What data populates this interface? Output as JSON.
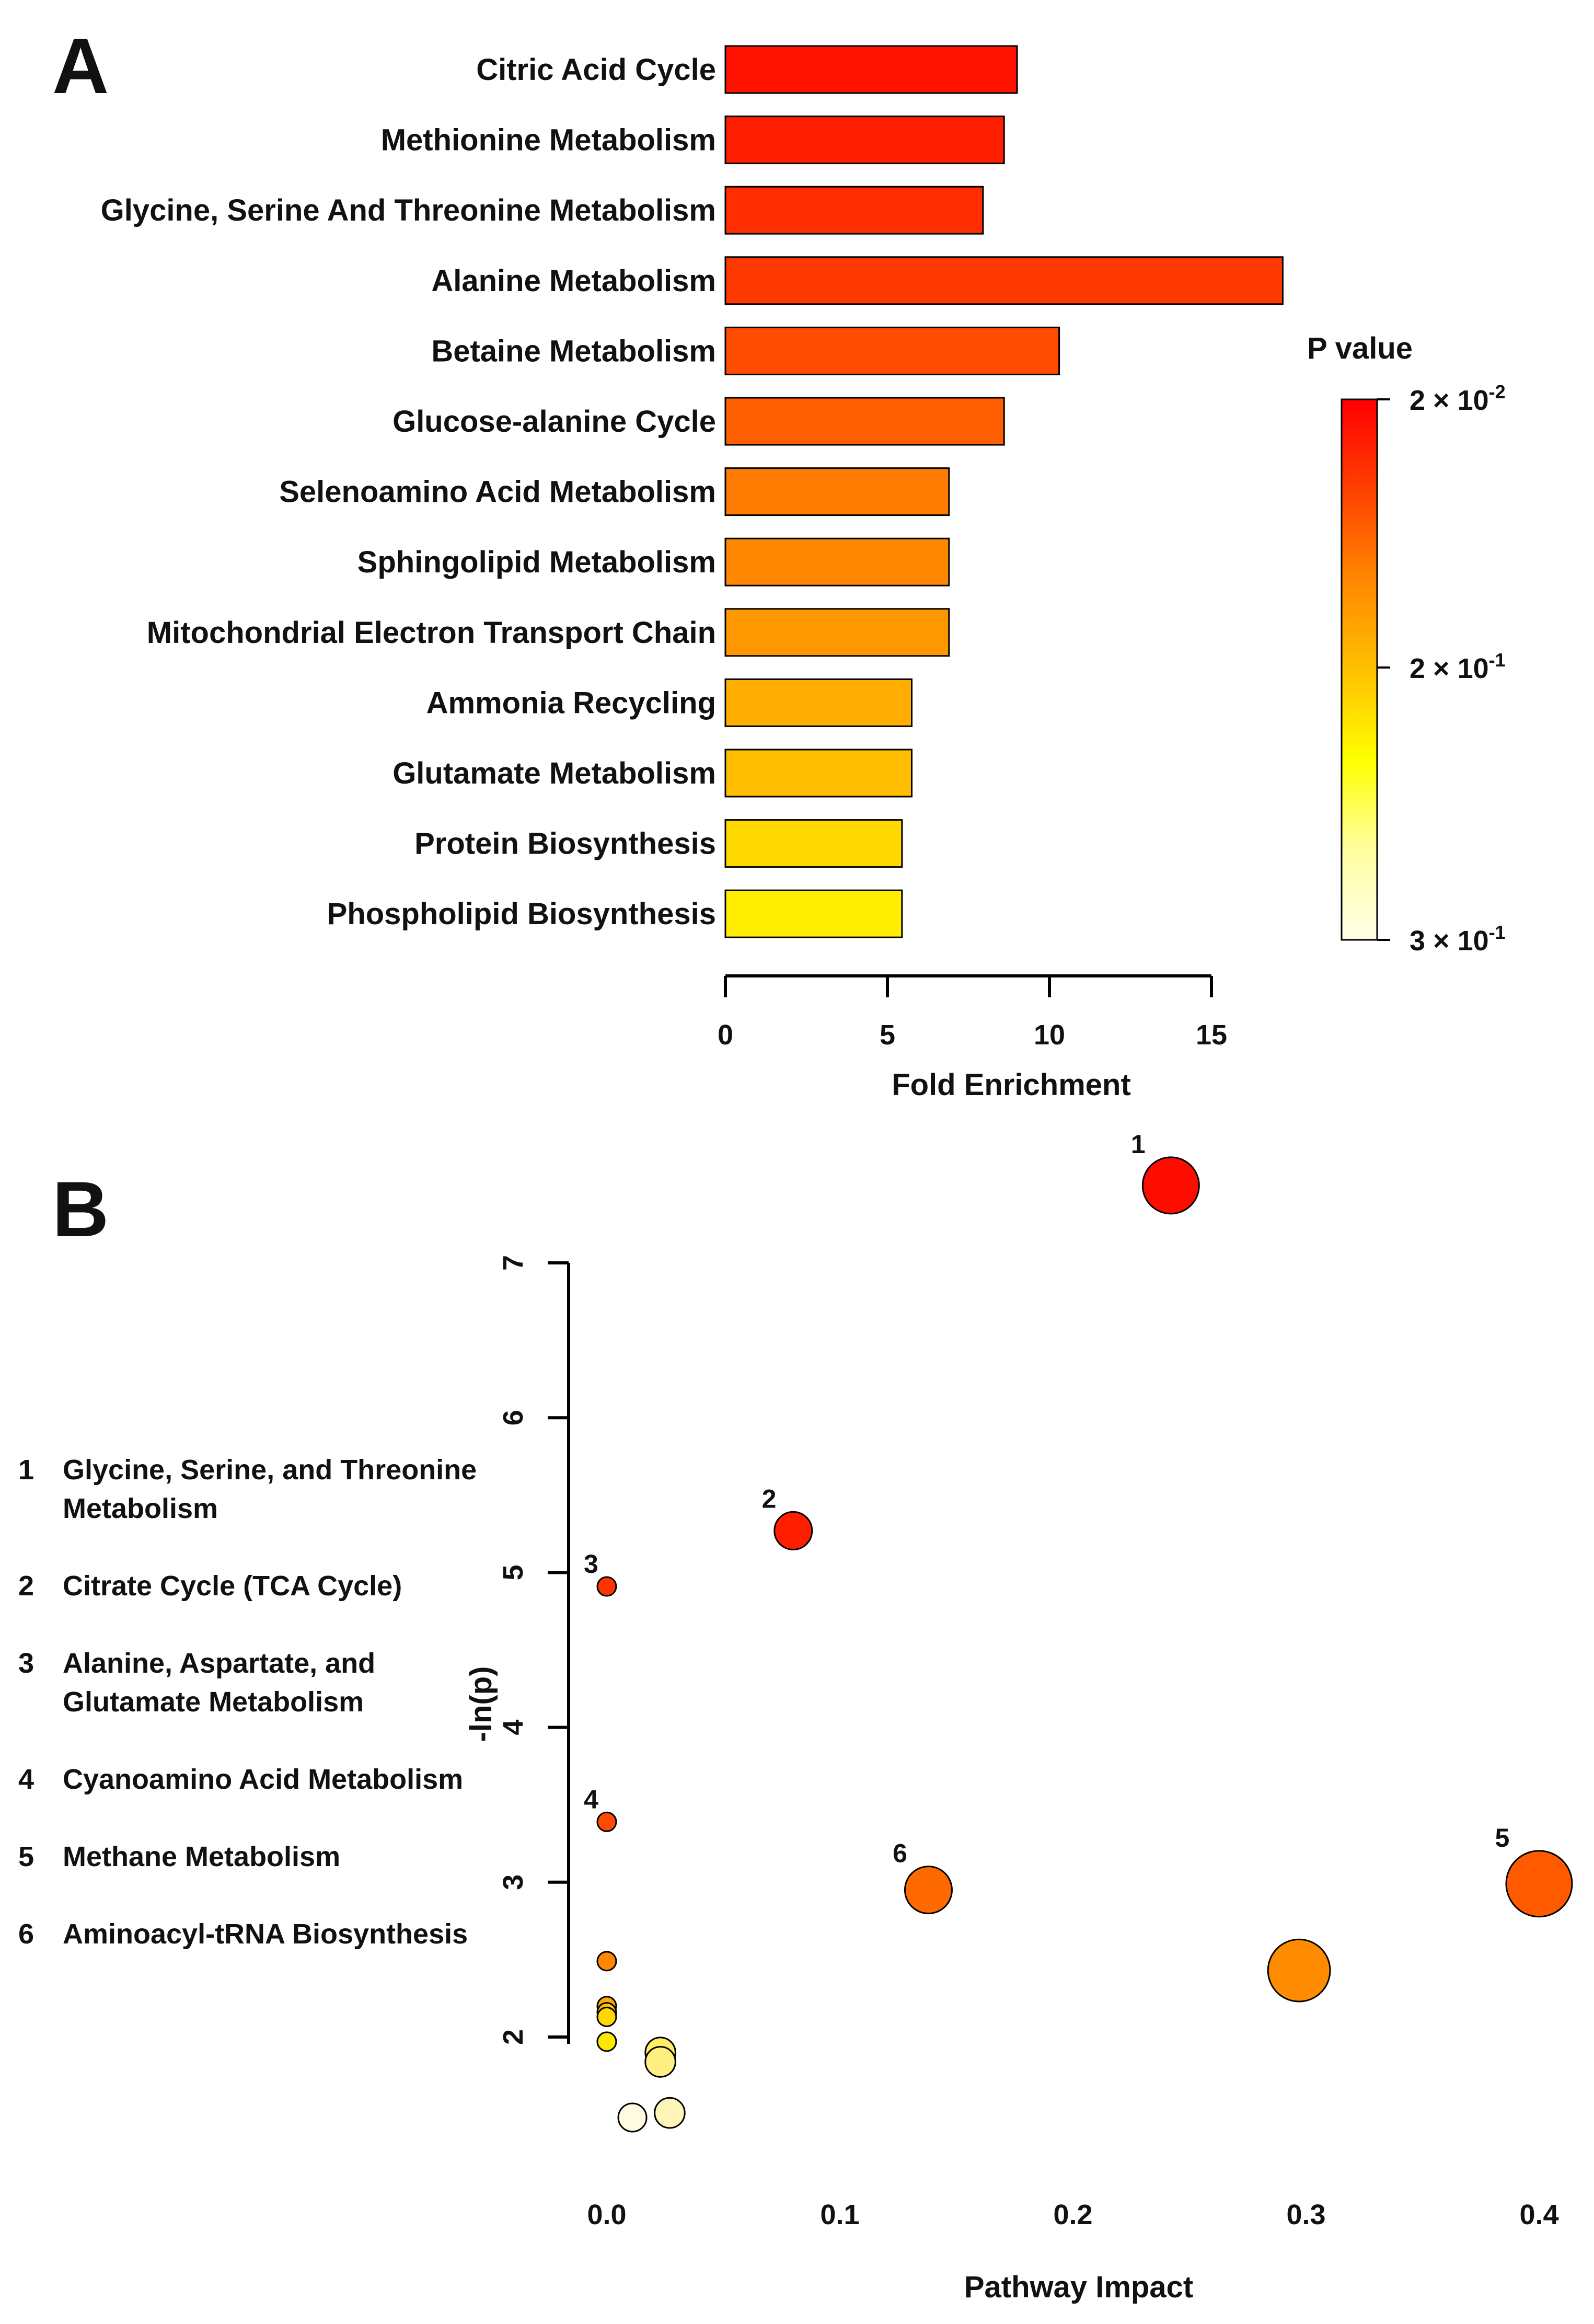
{
  "figure": {
    "panels": [
      {
        "letter": "A"
      },
      {
        "letter": "B"
      }
    ]
  },
  "chart_data": [
    {
      "panel": "A",
      "type": "bar",
      "orientation": "horizontal",
      "xlabel": "Fold Enrichment",
      "xlim": [
        0,
        15
      ],
      "xticks": [
        0,
        5,
        10,
        15
      ],
      "categories": [
        "Citric Acid Cycle",
        "Methionine Metabolism",
        "Glycine, Serine And Threonine Metabolism",
        "Alanine Metabolism",
        "Betaine Metabolism",
        "Glucose-alanine Cycle",
        "Selenoamino Acid Metabolism",
        "Sphingolipid Metabolism",
        "Mitochondrial Electron Transport Chain",
        "Ammonia Recycling",
        "Glutamate Metabolism",
        "Protein Biosynthesis",
        "Phospholipid Biosynthesis"
      ],
      "values": [
        9.0,
        8.6,
        7.95,
        17.2,
        10.3,
        8.6,
        6.9,
        6.9,
        6.9,
        5.75,
        5.75,
        5.45,
        5.45
      ],
      "colors": [
        "#ff1300",
        "#ff1e00",
        "#ff2d00",
        "#ff3a00",
        "#ff4c00",
        "#ff5f00",
        "#ff7a00",
        "#ff8800",
        "#ff9700",
        "#ffad00",
        "#ffbf00",
        "#ffd800",
        "#ffee00"
      ],
      "colorbar": {
        "title": "P value",
        "scale": "log",
        "ticks": [
          {
            "mantissa": "2 × 10",
            "exponent": "-2"
          },
          {
            "mantissa": "2 × 10",
            "exponent": "-1"
          },
          {
            "mantissa": "3 × 10",
            "exponent": "-1"
          }
        ],
        "gradient": [
          "#ff0000",
          "#ff4000",
          "#ff8800",
          "#ffc000",
          "#ffff00",
          "#ffffa0",
          "#ffffe8"
        ]
      }
    },
    {
      "panel": "B",
      "type": "scatter",
      "xlabel": "Pathway Impact",
      "ylabel": "-ln(p)",
      "xlim": [
        0,
        0.4
      ],
      "ylim": [
        1.3,
        7
      ],
      "xticks": [
        "0.0",
        "0.1",
        "0.2",
        "0.3",
        "0.4"
      ],
      "yticks": [
        "2",
        "3",
        "4",
        "5",
        "6",
        "7"
      ],
      "points": [
        {
          "label": "1",
          "x": 0.242,
          "y": 7.5,
          "size": 3,
          "color": "#ff0c00"
        },
        {
          "label": "2",
          "x": 0.08,
          "y": 5.27,
          "size": 2,
          "color": "#ff1e00"
        },
        {
          "label": "3",
          "x": 0.0,
          "y": 4.91,
          "size": 1,
          "color": "#ff3400"
        },
        {
          "label": "4",
          "x": 0.0,
          "y": 3.39,
          "size": 1,
          "color": "#ff4a00"
        },
        {
          "label": "5",
          "x": 0.4,
          "y": 2.99,
          "size": 3.5,
          "color": "#ff5a00"
        },
        {
          "label": "6",
          "x": 0.138,
          "y": 2.95,
          "size": 2.5,
          "color": "#ff6a00"
        },
        {
          "label": "",
          "x": 0.297,
          "y": 2.43,
          "size": 3.3,
          "color": "#ff8c00"
        },
        {
          "label": "",
          "x": 0.0,
          "y": 2.49,
          "size": 1,
          "color": "#ff8800"
        },
        {
          "label": "",
          "x": 0.0,
          "y": 2.2,
          "size": 1,
          "color": "#ffaa00"
        },
        {
          "label": "",
          "x": 0.0,
          "y": 2.16,
          "size": 1,
          "color": "#ffc400"
        },
        {
          "label": "",
          "x": 0.0,
          "y": 2.13,
          "size": 1,
          "color": "#ffd700"
        },
        {
          "label": "",
          "x": 0.0,
          "y": 1.97,
          "size": 1,
          "color": "#ffe800"
        },
        {
          "label": "",
          "x": 0.023,
          "y": 1.9,
          "size": 1.6,
          "color": "#ffee66"
        },
        {
          "label": "",
          "x": 0.023,
          "y": 1.84,
          "size": 1.6,
          "color": "#ffef80"
        },
        {
          "label": "",
          "x": 0.027,
          "y": 1.51,
          "size": 1.6,
          "color": "#fff5b8"
        },
        {
          "label": "",
          "x": 0.011,
          "y": 1.48,
          "size": 1.5,
          "color": "#fffbe0"
        }
      ],
      "legend": [
        {
          "num": "1",
          "text": [
            "Glycine, Serine, and Threonine",
            "Metabolism"
          ]
        },
        {
          "num": "2",
          "text": [
            "Citrate Cycle (TCA Cycle)"
          ]
        },
        {
          "num": "3",
          "text": [
            "Alanine, Aspartate, and",
            "Glutamate Metabolism"
          ]
        },
        {
          "num": "4",
          "text": [
            "Cyanoamino Acid Metabolism"
          ]
        },
        {
          "num": "5",
          "text": [
            "Methane Metabolism"
          ]
        },
        {
          "num": "6",
          "text": [
            "Aminoacyl-tRNA Biosynthesis"
          ]
        }
      ]
    }
  ]
}
